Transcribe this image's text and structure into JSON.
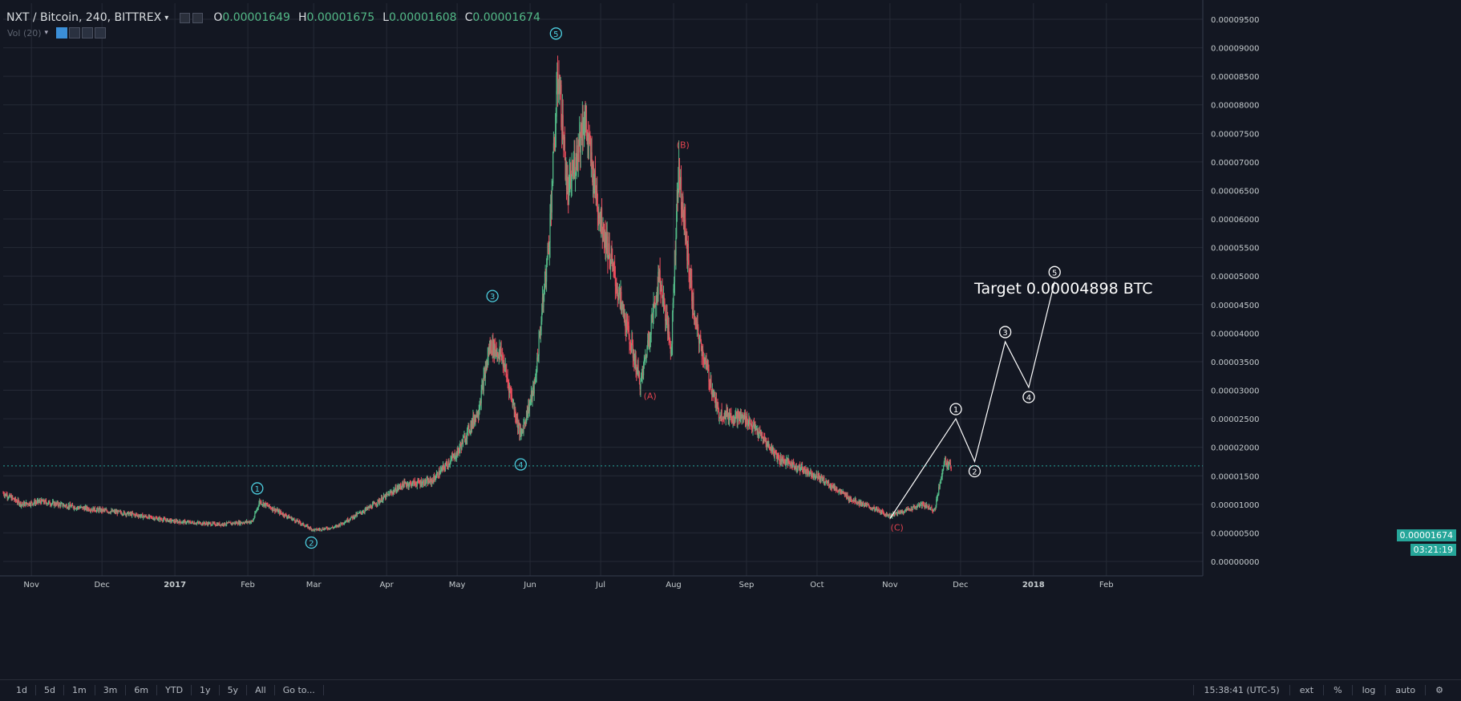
{
  "header": {
    "symbol": "NXT / Bitcoin, 240, BITTREX",
    "open_label": "O",
    "open_value": "0.00001649",
    "high_label": "H",
    "high_value": "0.00001675",
    "low_label": "L",
    "low_value": "0.00001608",
    "close_label": "C",
    "close_value": "0.00001674"
  },
  "volume_indicator": {
    "label": "Vol (20)"
  },
  "price_labels": {
    "last_price": "0.00001674",
    "countdown": "03:21:19"
  },
  "target_text": "Target 0.00004898 BTC",
  "bottom_bar": {
    "ranges": [
      "1d",
      "5d",
      "1m",
      "3m",
      "6m",
      "YTD",
      "1y",
      "5y",
      "All",
      "Go to..."
    ],
    "time": "15:38:41 (UTC-5)",
    "options": [
      "ext",
      "%",
      "log",
      "auto"
    ]
  },
  "colors": {
    "background": "#131722",
    "up": "#53b987",
    "down": "#eb4d5c",
    "wave": "#4dd0e1",
    "abc": "#e0434f",
    "projection": "#ffffff",
    "last_price": "#26a69a"
  },
  "chart_data": {
    "type": "candlestick",
    "y_axis": {
      "min": 0,
      "max": 9.5e-05,
      "ticks": [
        "0.00000000",
        "0.00000500",
        "0.00001000",
        "0.00001500",
        "0.00002000",
        "0.00002500",
        "0.00003000",
        "0.00003500",
        "0.00004000",
        "0.00004500",
        "0.00005000",
        "0.00005500",
        "0.00006000",
        "0.00006500",
        "0.00007000",
        "0.00007500",
        "0.00008000",
        "0.00008500",
        "0.00009000",
        "0.00009500"
      ]
    },
    "x_axis": {
      "range": [
        "2016-10-20",
        "2018-03-14"
      ],
      "ticks": [
        {
          "label": "Nov",
          "date": "2016-11-01"
        },
        {
          "label": "Dec",
          "date": "2016-12-01"
        },
        {
          "label": "2017",
          "date": "2017-01-01"
        },
        {
          "label": "Feb",
          "date": "2017-02-01"
        },
        {
          "label": "Mar",
          "date": "2017-03-01"
        },
        {
          "label": "Apr",
          "date": "2017-04-01"
        },
        {
          "label": "May",
          "date": "2017-05-01"
        },
        {
          "label": "Jun",
          "date": "2017-06-01"
        },
        {
          "label": "Jul",
          "date": "2017-07-01"
        },
        {
          "label": "Aug",
          "date": "2017-08-01"
        },
        {
          "label": "Sep",
          "date": "2017-09-01"
        },
        {
          "label": "Oct",
          "date": "2017-10-01"
        },
        {
          "label": "Nov",
          "date": "2017-11-01"
        },
        {
          "label": "Dec",
          "date": "2017-12-01"
        },
        {
          "label": "2018",
          "date": "2018-01-01"
        },
        {
          "label": "Feb",
          "date": "2018-02-01"
        }
      ]
    },
    "price_path": [
      [
        "2016-10-20",
        1.2e-05
      ],
      [
        "2016-10-28",
        1e-05
      ],
      [
        "2016-11-05",
        1.05e-05
      ],
      [
        "2016-11-20",
        9.5e-06
      ],
      [
        "2016-12-10",
        8.5e-06
      ],
      [
        "2017-01-01",
        7e-06
      ],
      [
        "2017-01-20",
        6.5e-06
      ],
      [
        "2017-02-03",
        7e-06
      ],
      [
        "2017-02-06",
        1.05e-05
      ],
      [
        "2017-02-15",
        8.5e-06
      ],
      [
        "2017-03-01",
        5.5e-06
      ],
      [
        "2017-03-10",
        6e-06
      ],
      [
        "2017-03-25",
        9.5e-06
      ],
      [
        "2017-04-08",
        1.35e-05
      ],
      [
        "2017-04-20",
        1.4e-05
      ],
      [
        "2017-05-01",
        1.9e-05
      ],
      [
        "2017-05-10",
        2.65e-05
      ],
      [
        "2017-05-15",
        3.8e-05
      ],
      [
        "2017-05-20",
        3.6e-05
      ],
      [
        "2017-05-28",
        2.2e-05
      ],
      [
        "2017-06-03",
        3.1e-05
      ],
      [
        "2017-06-09",
        5.6e-05
      ],
      [
        "2017-06-13",
        8.6e-05
      ],
      [
        "2017-06-17",
        6.4e-05
      ],
      [
        "2017-06-24",
        7.8e-05
      ],
      [
        "2017-06-30",
        6.2e-05
      ],
      [
        "2017-07-08",
        4.8e-05
      ],
      [
        "2017-07-18",
        3.1e-05
      ],
      [
        "2017-07-26",
        5e-05
      ],
      [
        "2017-07-31",
        3.7e-05
      ],
      [
        "2017-08-03",
        6.9e-05
      ],
      [
        "2017-08-10",
        4.2e-05
      ],
      [
        "2017-08-20",
        2.6e-05
      ],
      [
        "2017-09-01",
        2.5e-05
      ],
      [
        "2017-09-15",
        1.8e-05
      ],
      [
        "2017-10-01",
        1.5e-05
      ],
      [
        "2017-10-15",
        1.1e-05
      ],
      [
        "2017-11-01",
        8e-06
      ],
      [
        "2017-11-15",
        1e-05
      ],
      [
        "2017-11-20",
        9e-06
      ],
      [
        "2017-11-24",
        1.75e-05
      ],
      [
        "2017-11-27",
        1.65e-05
      ]
    ],
    "wave_labels": [
      {
        "text": "1",
        "date": "2017-02-05",
        "price": 1.28e-05
      },
      {
        "text": "2",
        "date": "2017-02-28",
        "price": 3.3e-06
      },
      {
        "text": "3",
        "date": "2017-05-16",
        "price": 4.65e-05
      },
      {
        "text": "4",
        "date": "2017-05-28",
        "price": 1.7e-05
      },
      {
        "text": "5",
        "date": "2017-06-12",
        "price": 9.25e-05
      }
    ],
    "abc_labels": [
      {
        "text": "(A)",
        "date": "2017-07-22",
        "price": 2.9e-05
      },
      {
        "text": "(B)",
        "date": "2017-08-05",
        "price": 7.3e-05
      },
      {
        "text": "(C)",
        "date": "2017-11-04",
        "price": 6e-06
      }
    ],
    "projection": [
      [
        "2017-11-01",
        7.5e-06
      ],
      [
        "2017-11-29",
        2.5e-05
      ],
      [
        "2017-12-07",
        1.75e-05
      ],
      [
        "2017-12-20",
        3.85e-05
      ],
      [
        "2017-12-30",
        3.05e-05
      ],
      [
        "2018-01-10",
        4.9e-05
      ]
    ],
    "projection_labels": [
      "1",
      "2",
      "3",
      "4",
      "5"
    ]
  }
}
